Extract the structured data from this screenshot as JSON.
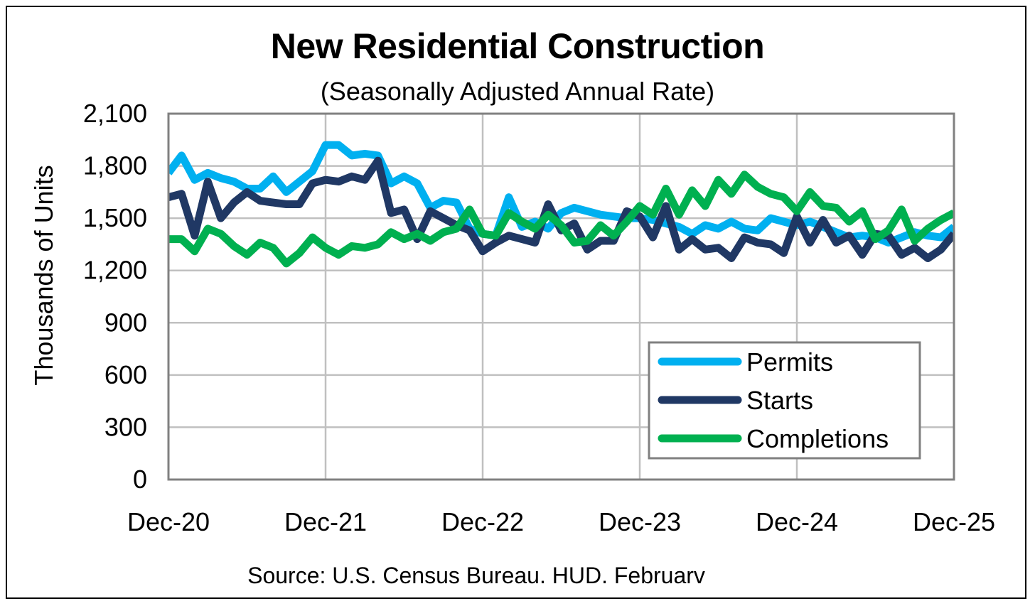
{
  "chart_data": {
    "type": "line",
    "title": "New Residential Construction",
    "subtitle": "(Seasonally Adjusted Annual Rate)",
    "ylabel": "Thousands of Units",
    "xlabel": "",
    "source": "Source:  U.S. Census Bureau. HUD. Februarv",
    "ylim": [
      0,
      2100
    ],
    "yticks": [
      0,
      300,
      600,
      900,
      1200,
      1500,
      1800,
      2100
    ],
    "ytick_labels": [
      "0",
      "300",
      "600",
      "900",
      "1,200",
      "1,500",
      "1,800",
      "2,100"
    ],
    "xticks": [
      0,
      12,
      24,
      36,
      48,
      60
    ],
    "xtick_labels": [
      "Dec-20",
      "Dec-21",
      "Dec-22",
      "Dec-23",
      "Dec-24",
      "Dec-25"
    ],
    "xlim": [
      0,
      60
    ],
    "grid": true,
    "legend_position": "bottom-right",
    "series": [
      {
        "name": "Permits",
        "color": "#00b0f0",
        "values": [
          1760,
          1860,
          1720,
          1760,
          1730,
          1710,
          1670,
          1670,
          1740,
          1650,
          1710,
          1770,
          1920,
          1920,
          1860,
          1870,
          1860,
          1700,
          1740,
          1700,
          1560,
          1600,
          1590,
          1440,
          1410,
          1400,
          1620,
          1450,
          1480,
          1440,
          1530,
          1560,
          1540,
          1520,
          1510,
          1500,
          1500,
          1490,
          1470,
          1450,
          1410,
          1460,
          1440,
          1480,
          1440,
          1430,
          1500,
          1480,
          1460,
          1480,
          1450,
          1420,
          1390,
          1400,
          1390,
          1360,
          1390,
          1420,
          1400,
          1390,
          1450
        ]
      },
      {
        "name": "Starts",
        "color": "#203864",
        "values": [
          1620,
          1640,
          1400,
          1710,
          1500,
          1590,
          1650,
          1600,
          1590,
          1580,
          1580,
          1700,
          1720,
          1710,
          1740,
          1720,
          1830,
          1530,
          1550,
          1380,
          1540,
          1500,
          1460,
          1430,
          1310,
          1360,
          1400,
          1380,
          1360,
          1580,
          1430,
          1470,
          1320,
          1370,
          1370,
          1540,
          1510,
          1390,
          1570,
          1320,
          1380,
          1320,
          1330,
          1270,
          1390,
          1360,
          1350,
          1300,
          1510,
          1360,
          1490,
          1360,
          1400,
          1290,
          1410,
          1400,
          1290,
          1330,
          1270,
          1320,
          1410
        ]
      },
      {
        "name": "Completions",
        "color": "#00b050",
        "values": [
          1380,
          1380,
          1310,
          1440,
          1410,
          1340,
          1290,
          1360,
          1330,
          1240,
          1300,
          1390,
          1330,
          1290,
          1340,
          1330,
          1350,
          1420,
          1380,
          1410,
          1370,
          1420,
          1440,
          1550,
          1410,
          1400,
          1530,
          1480,
          1440,
          1520,
          1460,
          1360,
          1370,
          1460,
          1400,
          1480,
          1570,
          1520,
          1670,
          1520,
          1660,
          1570,
          1720,
          1640,
          1750,
          1680,
          1640,
          1620,
          1540,
          1650,
          1570,
          1560,
          1480,
          1540,
          1380,
          1430,
          1550,
          1370,
          1440,
          1490,
          1530
        ]
      }
    ]
  }
}
